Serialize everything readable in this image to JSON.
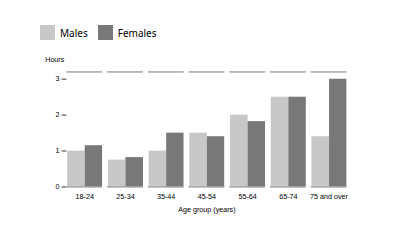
{
  "chart_data": {
    "type": "bar",
    "xlabel": "Age group (years)",
    "ylabel": "Hours",
    "categories": [
      "18-24",
      "25-34",
      "35-44",
      "45-54",
      "55-64",
      "65-74",
      "75 and over"
    ],
    "series": [
      {
        "name": "Males",
        "color": "#c8c8c8",
        "values": [
          1.0,
          0.75,
          1.0,
          1.5,
          2.0,
          2.5,
          1.4
        ]
      },
      {
        "name": "Females",
        "color": "#787878",
        "values": [
          1.15,
          0.82,
          1.5,
          1.4,
          1.82,
          2.5,
          3.0
        ]
      }
    ],
    "ylim": [
      0,
      3.2
    ],
    "yticks": [
      0,
      1,
      2,
      3
    ],
    "legend": "top"
  }
}
